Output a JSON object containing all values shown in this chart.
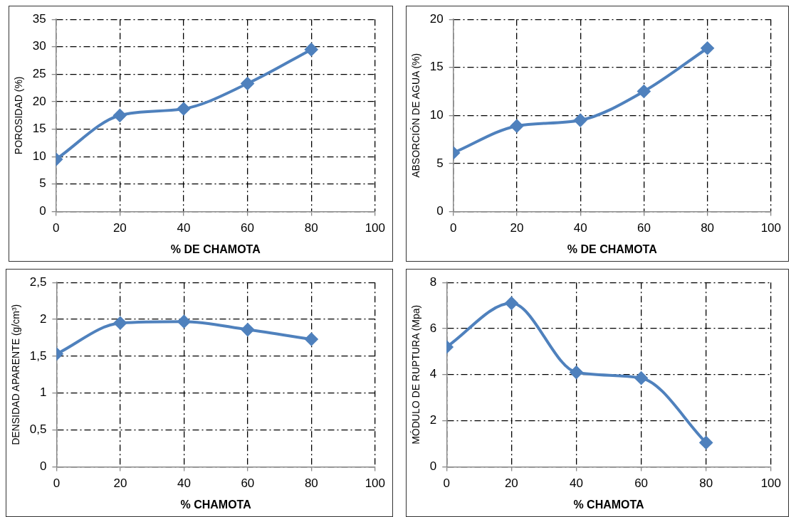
{
  "chart_data": [
    {
      "type": "line",
      "xlabel": "% DE CHAMOTA",
      "ylabel": "POROSIDAD (%)",
      "x": [
        0,
        20,
        40,
        60,
        80
      ],
      "series": [
        {
          "color": "#4f81bd",
          "values": [
            9.5,
            17.5,
            18.7,
            23.3,
            29.5
          ]
        }
      ],
      "xlim": [
        0,
        100
      ],
      "xticks": [
        0,
        20,
        40,
        60,
        80,
        100
      ],
      "ylim": [
        0,
        35
      ],
      "yticks": [
        0,
        5,
        10,
        15,
        20,
        25,
        30,
        35
      ],
      "grid": true,
      "legend": false,
      "marker": "diamond",
      "line_style": "solid"
    },
    {
      "type": "line",
      "xlabel": "% DE CHAMOTA",
      "ylabel": "ABSORCIÓN DE AGUA (%)",
      "x": [
        0,
        20,
        40,
        60,
        80
      ],
      "series": [
        {
          "color": "#4f81bd",
          "values": [
            6.1,
            8.9,
            9.5,
            12.5,
            17
          ]
        }
      ],
      "xlim": [
        0,
        100
      ],
      "xticks": [
        0,
        20,
        40,
        60,
        80,
        100
      ],
      "ylim": [
        0,
        20
      ],
      "yticks": [
        0,
        5,
        10,
        15,
        20
      ],
      "grid": true,
      "legend": false,
      "marker": "diamond",
      "line_style": "solid"
    },
    {
      "type": "line",
      "xlabel": "% CHAMOTA",
      "ylabel": "DENSIDAD APARENTE (g/cm³)",
      "x": [
        0,
        20,
        40,
        60,
        80
      ],
      "series": [
        {
          "color": "#4f81bd",
          "values": [
            1.53,
            1.95,
            1.97,
            1.86,
            1.73
          ]
        }
      ],
      "xlim": [
        0,
        100
      ],
      "xticks": [
        0,
        20,
        40,
        60,
        80,
        100
      ],
      "ylim": [
        0,
        2.5
      ],
      "yticks": [
        0,
        {
          "value": 0.5,
          "label": "0,5"
        },
        1,
        {
          "value": 1.5,
          "label": "1,5"
        },
        2,
        {
          "value": 2.5,
          "label": "2,5"
        }
      ],
      "grid": true,
      "legend": false,
      "marker": "diamond",
      "line_style": "solid"
    },
    {
      "type": "line",
      "xlabel": "% CHAMOTA",
      "ylabel": "MÓDULO DE RUPTURA (Mpa)",
      "x": [
        0,
        20,
        40,
        60,
        80
      ],
      "series": [
        {
          "color": "#4f81bd",
          "values": [
            5.2,
            7.1,
            4.1,
            3.85,
            1.05
          ]
        }
      ],
      "xlim": [
        0,
        100
      ],
      "xticks": [
        0,
        20,
        40,
        60,
        80,
        100
      ],
      "ylim": [
        0,
        8
      ],
      "yticks": [
        0,
        2,
        4,
        6,
        8
      ],
      "grid": true,
      "legend": false,
      "marker": "diamond",
      "line_style": "solid"
    }
  ]
}
